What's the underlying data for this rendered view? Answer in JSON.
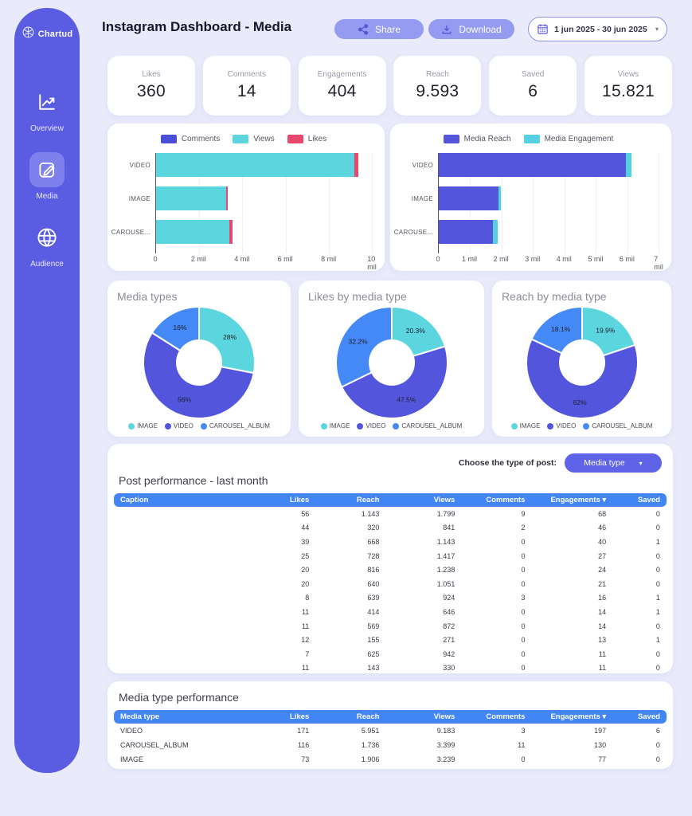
{
  "sidebar": {
    "logo_text": "Chartud",
    "items": [
      {
        "label": "Overview",
        "icon": "line-chart-icon",
        "active": false
      },
      {
        "label": "Media",
        "icon": "edit-icon",
        "active": true
      },
      {
        "label": "Audience",
        "icon": "globe-icon",
        "active": false
      }
    ]
  },
  "header": {
    "title": "Instagram Dashboard - Media",
    "share_label": "Share",
    "download_label": "Download",
    "date_range": "1 jun 2025 - 30 jun 2025"
  },
  "kpis": [
    {
      "label": "Likes",
      "value": "360"
    },
    {
      "label": "Comments",
      "value": "14"
    },
    {
      "label": "Engagements",
      "value": "404"
    },
    {
      "label": "Reach",
      "value": "9.593"
    },
    {
      "label": "Saved",
      "value": "6"
    },
    {
      "label": "Views",
      "value": "15.821"
    }
  ],
  "colors": {
    "purple": "#5356dc",
    "indigo": "#4a4fd8",
    "teal": "#5cd6de",
    "pink": "#e9476e",
    "blue": "#4589f6",
    "table_header": "#4286f5"
  },
  "chart_data": [
    {
      "type": "bar",
      "orientation": "horizontal-stacked",
      "categories": [
        "VIDEO",
        "IMAGE",
        "CAROUSE..."
      ],
      "series": [
        {
          "name": "Comments",
          "color": "#4a4fd8",
          "values": [
            3,
            0,
            11
          ]
        },
        {
          "name": "Views",
          "color": "#5cd6de",
          "values": [
            9183,
            3239,
            3399
          ]
        },
        {
          "name": "Likes",
          "color": "#e9476e",
          "values": [
            171,
            73,
            116
          ]
        }
      ],
      "xmax": 10000,
      "xticks": [
        "0",
        "2 mil",
        "4 mil",
        "6 mil",
        "8 mil",
        "10 mil"
      ],
      "legend_position": "top",
      "grid": true
    },
    {
      "type": "bar",
      "orientation": "horizontal-stacked",
      "categories": [
        "VIDEO",
        "IMAGE",
        "CAROUSE..."
      ],
      "series": [
        {
          "name": "Media Reach",
          "color": "#5356dc",
          "values": [
            5951,
            1906,
            1736
          ]
        },
        {
          "name": "Media Engagement",
          "color": "#55cfe2",
          "values": [
            197,
            77,
            130
          ]
        }
      ],
      "xmax": 7000,
      "xticks": [
        "0",
        "1 mil",
        "2 mil",
        "3 mil",
        "4 mil",
        "5 mil",
        "6 mil",
        "7 mil"
      ],
      "legend_position": "top",
      "grid": true
    },
    {
      "type": "pie",
      "title": "Media types",
      "labels": [
        "IMAGE",
        "VIDEO",
        "CAROUSEL_ALBUM"
      ],
      "values": [
        28,
        56,
        16
      ],
      "value_labels": [
        "16%",
        "28%",
        "56%"
      ],
      "slice_labels": [
        "28%",
        "56%",
        "16%"
      ],
      "colors": [
        "#5cd6de",
        "#5356dc",
        "#4589f6"
      ],
      "legend_position": "bottom"
    },
    {
      "type": "pie",
      "title": "Likes by media type",
      "labels": [
        "IMAGE",
        "VIDEO",
        "CAROUSEL_ALBUM"
      ],
      "values": [
        20.3,
        47.5,
        32.2
      ],
      "slice_labels": [
        "20.3%",
        "47.5%",
        "32.2%"
      ],
      "colors": [
        "#5cd6de",
        "#5356dc",
        "#4589f6"
      ],
      "legend_position": "bottom"
    },
    {
      "type": "pie",
      "title": "Reach by media type",
      "labels": [
        "IMAGE",
        "VIDEO",
        "CAROUSEL_ALBUM"
      ],
      "values": [
        19.9,
        62,
        18.1
      ],
      "slice_labels": [
        "19.9%",
        "62%",
        "18.1%"
      ],
      "colors": [
        "#5cd6de",
        "#5356dc",
        "#4589f6"
      ],
      "legend_position": "bottom"
    }
  ],
  "post_table": {
    "title": "Post performance - last month",
    "filter_label": "Choose the type of post:",
    "filter_value": "Media type",
    "headers": [
      "Caption",
      "Likes",
      "Reach",
      "Views",
      "Comments",
      "Engagements ▾",
      "Saved"
    ],
    "caption_redacted": true,
    "rows": [
      [
        "56",
        "1.143",
        "1.799",
        "9",
        "68",
        "0"
      ],
      [
        "44",
        "320",
        "841",
        "2",
        "46",
        "0"
      ],
      [
        "39",
        "668",
        "1.143",
        "0",
        "40",
        "1"
      ],
      [
        "25",
        "728",
        "1.417",
        "0",
        "27",
        "0"
      ],
      [
        "20",
        "816",
        "1.238",
        "0",
        "24",
        "0"
      ],
      [
        "20",
        "640",
        "1.051",
        "0",
        "21",
        "0"
      ],
      [
        "8",
        "639",
        "924",
        "3",
        "16",
        "1"
      ],
      [
        "11",
        "414",
        "646",
        "0",
        "14",
        "1"
      ],
      [
        "11",
        "569",
        "872",
        "0",
        "14",
        "0"
      ],
      [
        "12",
        "155",
        "271",
        "0",
        "13",
        "1"
      ],
      [
        "7",
        "625",
        "942",
        "0",
        "11",
        "0"
      ],
      [
        "11",
        "143",
        "330",
        "0",
        "11",
        "0"
      ]
    ]
  },
  "media_table": {
    "title": "Media type performance",
    "headers": [
      "Media type",
      "Likes",
      "Reach",
      "Views",
      "Comments",
      "Engagements ▾",
      "Saved"
    ],
    "rows": [
      [
        "VIDEO",
        "171",
        "5.951",
        "9.183",
        "3",
        "197",
        "6"
      ],
      [
        "CAROUSEL_ALBUM",
        "116",
        "1.736",
        "3.399",
        "11",
        "130",
        "0"
      ],
      [
        "IMAGE",
        "73",
        "1.906",
        "3.239",
        "0",
        "77",
        "0"
      ]
    ]
  }
}
